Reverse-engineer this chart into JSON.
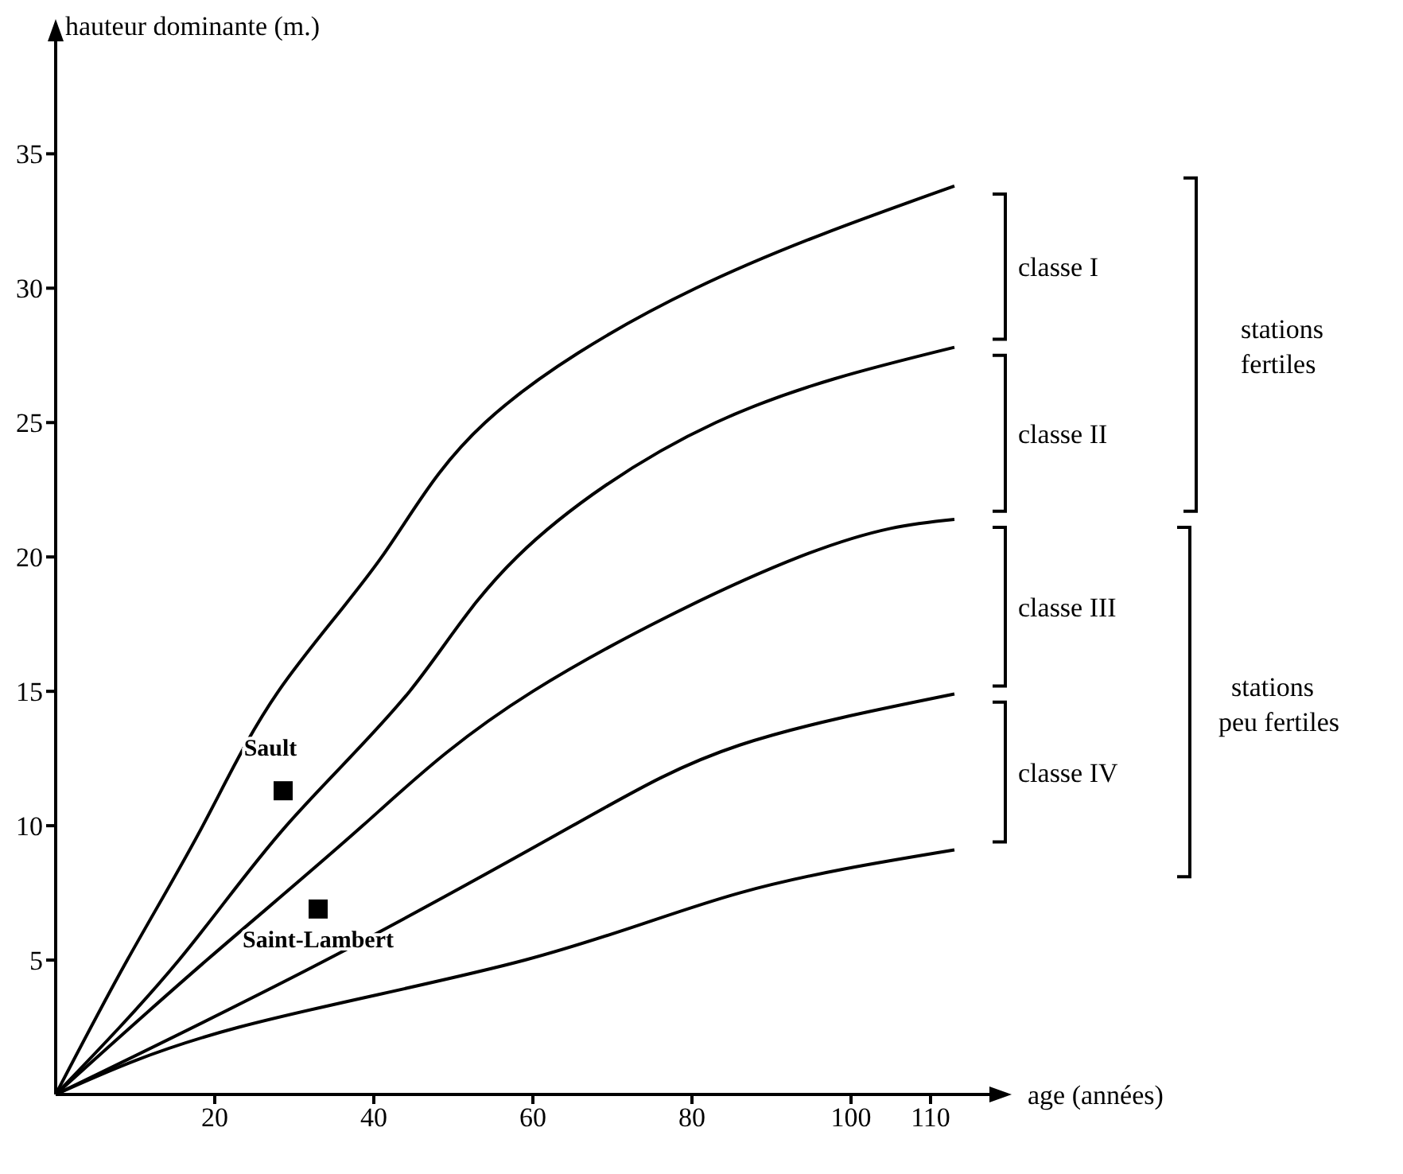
{
  "chart_data": {
    "type": "line",
    "xlabel": "age  (années)",
    "ylabel": "hauteur dominante (m.)",
    "xlim": [
      0,
      115
    ],
    "ylim": [
      0,
      38
    ],
    "xticks": [
      20,
      40,
      60,
      80,
      100,
      110
    ],
    "yticks": [
      5,
      10,
      15,
      20,
      25,
      30,
      35
    ],
    "marker": "none",
    "line_style": "solid",
    "series": [
      {
        "color": "#000000",
        "x": [
          0,
          9,
          18.5,
          28,
          41,
          54,
          80.5,
          113
        ],
        "values": [
          0,
          5,
          10,
          15,
          20,
          25,
          30,
          33.8
        ]
      },
      {
        "color": "#000000",
        "x": [
          0,
          15.5,
          29,
          44.5,
          58,
          83,
          113
        ],
        "values": [
          0,
          5,
          10,
          15,
          20,
          25,
          27.8
        ]
      },
      {
        "color": "#000000",
        "x": [
          0,
          19,
          38.6,
          60,
          93.5,
          113
        ],
        "values": [
          0,
          5,
          10,
          15,
          20,
          21.4
        ]
      },
      {
        "color": "#000000",
        "x": [
          0,
          34,
          65,
          86,
          113
        ],
        "values": [
          0,
          5,
          10,
          13,
          14.9
        ]
      },
      {
        "color": "#000000",
        "x": [
          0,
          23,
          59,
          86,
          113
        ],
        "values": [
          0,
          2.5,
          5,
          7.5,
          9.1
        ]
      },
      {
        "type": "scatter",
        "marker": "square",
        "color": "#000000",
        "x": [
          28.6,
          33
        ],
        "values": [
          11.3,
          6.9
        ]
      }
    ],
    "annotations": [
      {
        "text": "Sault",
        "x": 28.6,
        "y": 11.3
      },
      {
        "text": "Saint-Lambert",
        "x": 33,
        "y": 6.9
      },
      "classe I",
      "classe II",
      "classe III",
      "classe IV",
      "stations fertiles",
      "stations peu fertiles"
    ]
  }
}
